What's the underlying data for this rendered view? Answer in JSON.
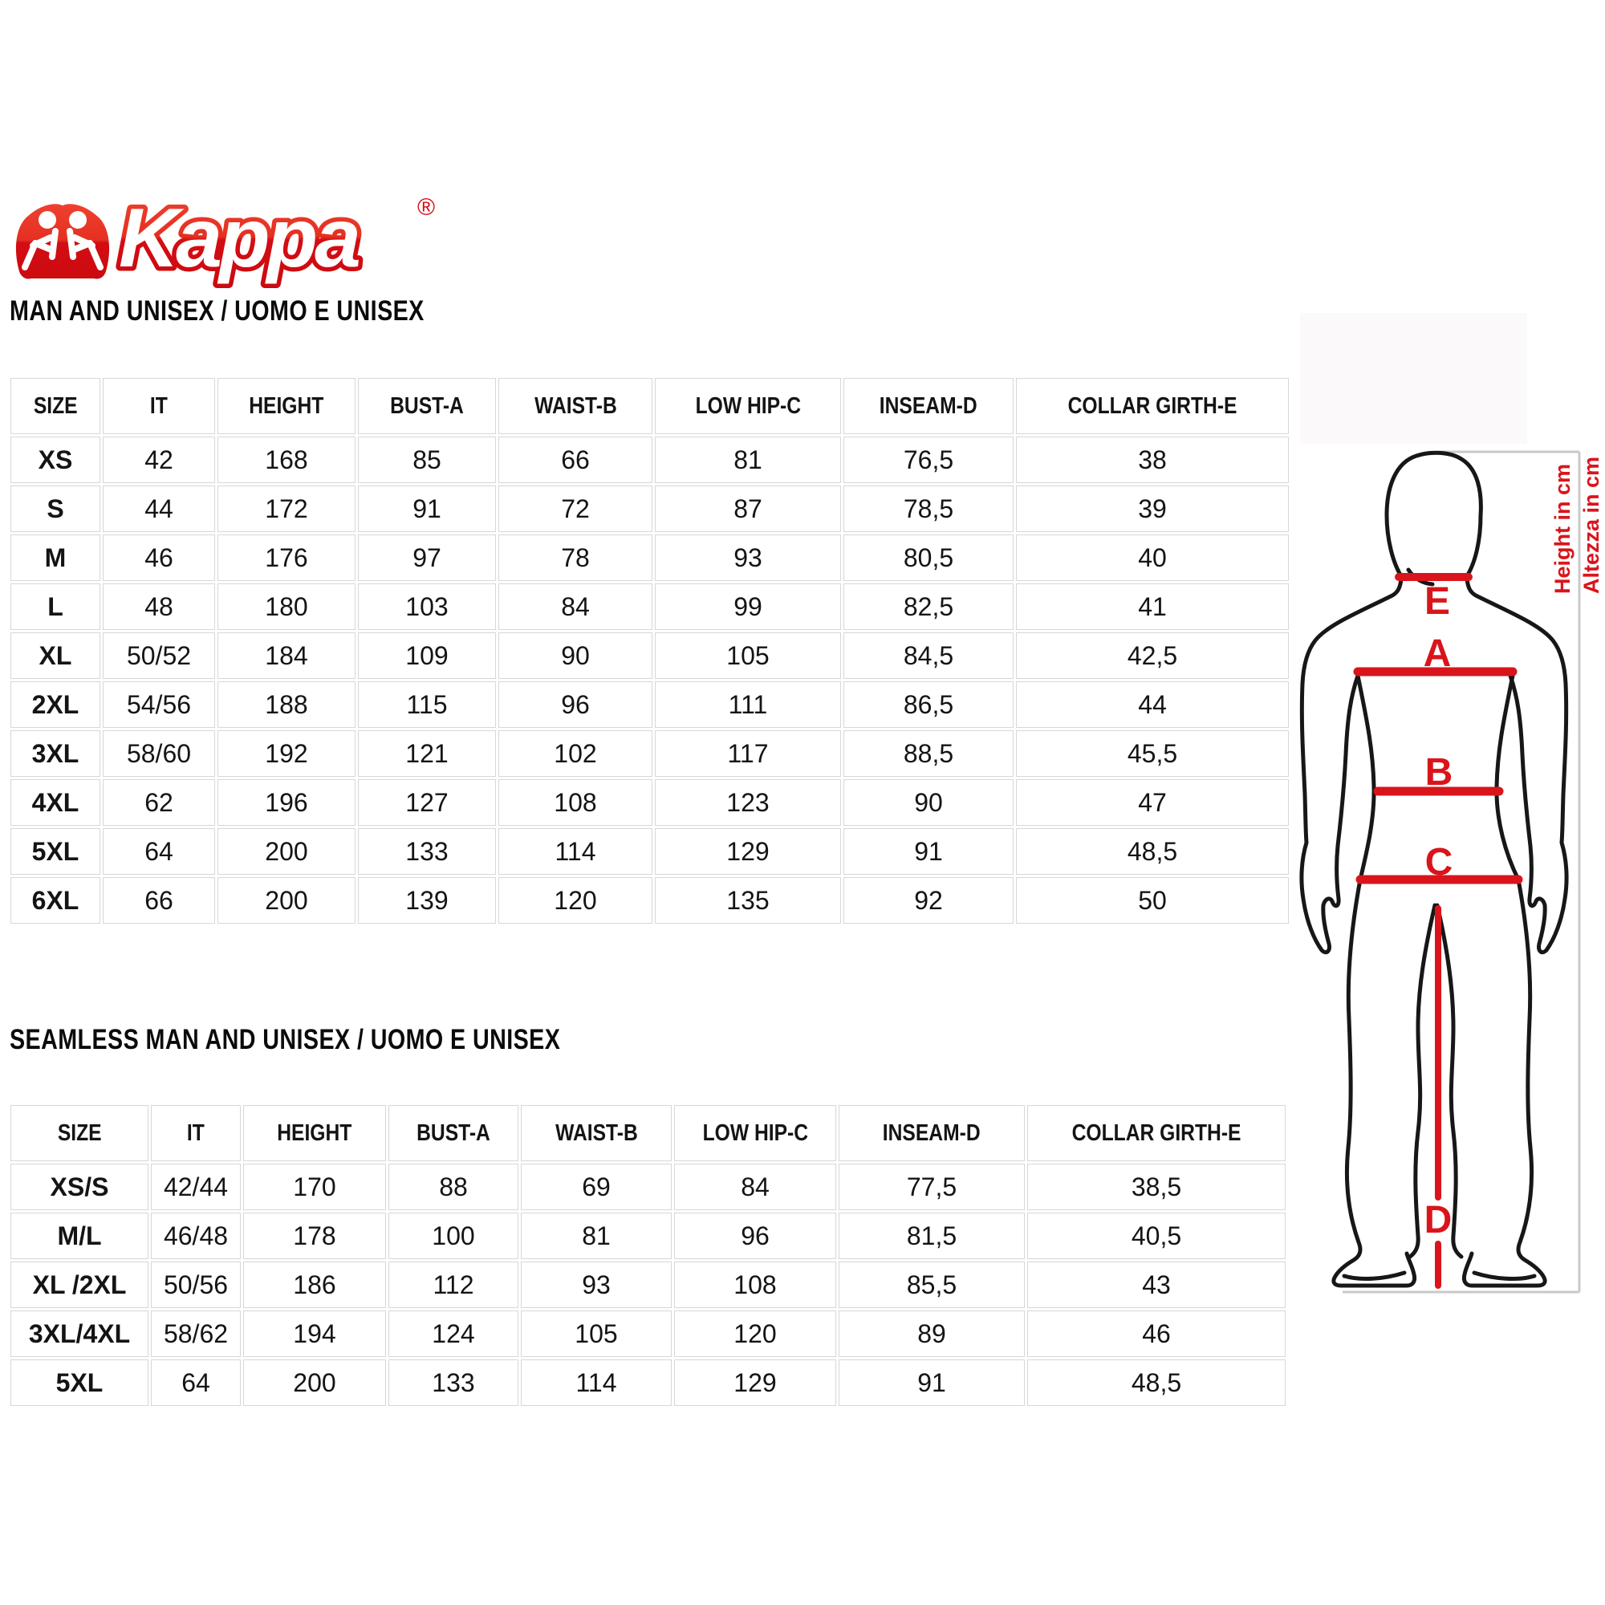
{
  "logo": {
    "brand": "Kappa",
    "registered_mark": "®"
  },
  "tables": [
    {
      "title": "MAN AND UNISEX / UOMO E UNISEX",
      "columns": [
        "SIZE",
        "IT",
        "HEIGHT",
        "BUST-A",
        "WAIST-B",
        "LOW HIP-C",
        "INSEAM-D",
        "COLLAR GIRTH-E"
      ],
      "rows": [
        [
          "XS",
          "42",
          "168",
          "85",
          "66",
          "81",
          "76,5",
          "38"
        ],
        [
          "S",
          "44",
          "172",
          "91",
          "72",
          "87",
          "78,5",
          "39"
        ],
        [
          "M",
          "46",
          "176",
          "97",
          "78",
          "93",
          "80,5",
          "40"
        ],
        [
          "L",
          "48",
          "180",
          "103",
          "84",
          "99",
          "82,5",
          "41"
        ],
        [
          "XL",
          "50/52",
          "184",
          "109",
          "90",
          "105",
          "84,5",
          "42,5"
        ],
        [
          "2XL",
          "54/56",
          "188",
          "115",
          "96",
          "111",
          "86,5",
          "44"
        ],
        [
          "3XL",
          "58/60",
          "192",
          "121",
          "102",
          "117",
          "88,5",
          "45,5"
        ],
        [
          "4XL",
          "62",
          "196",
          "127",
          "108",
          "123",
          "90",
          "47"
        ],
        [
          "5XL",
          "64",
          "200",
          "133",
          "114",
          "129",
          "91",
          "48,5"
        ],
        [
          "6XL",
          "66",
          "200",
          "139",
          "120",
          "135",
          "92",
          "50"
        ]
      ]
    },
    {
      "title": "SEAMLESS MAN AND UNISEX / UOMO E UNISEX",
      "columns": [
        "SIZE",
        "IT",
        "HEIGHT",
        "BUST-A",
        "WAIST-B",
        "LOW HIP-C",
        "INSEAM-D",
        "COLLAR GIRTH-E"
      ],
      "rows": [
        [
          "XS/S",
          "42/44",
          "170",
          "88",
          "69",
          "84",
          "77,5",
          "38,5"
        ],
        [
          "M/L",
          "46/48",
          "178",
          "100",
          "81",
          "96",
          "81,5",
          "40,5"
        ],
        [
          "XL /2XL",
          "50/56",
          "186",
          "112",
          "93",
          "108",
          "85,5",
          "43"
        ],
        [
          "3XL/4XL",
          "58/62",
          "194",
          "124",
          "105",
          "120",
          "89",
          "46"
        ],
        [
          "5XL",
          "64",
          "200",
          "133",
          "114",
          "129",
          "91",
          "48,5"
        ]
      ]
    }
  ],
  "figure": {
    "measure_labels": {
      "collar": "E",
      "bust": "A",
      "waist": "B",
      "hip": "C",
      "inseam": "D"
    },
    "height_note_en": "Height in cm",
    "height_note_it": "Altezza in cm",
    "colors": {
      "measure_red": "#d9151b",
      "outline_black": "#171717",
      "dim_gray": "#c9c9c9",
      "logo_red": "#d60b12"
    }
  }
}
